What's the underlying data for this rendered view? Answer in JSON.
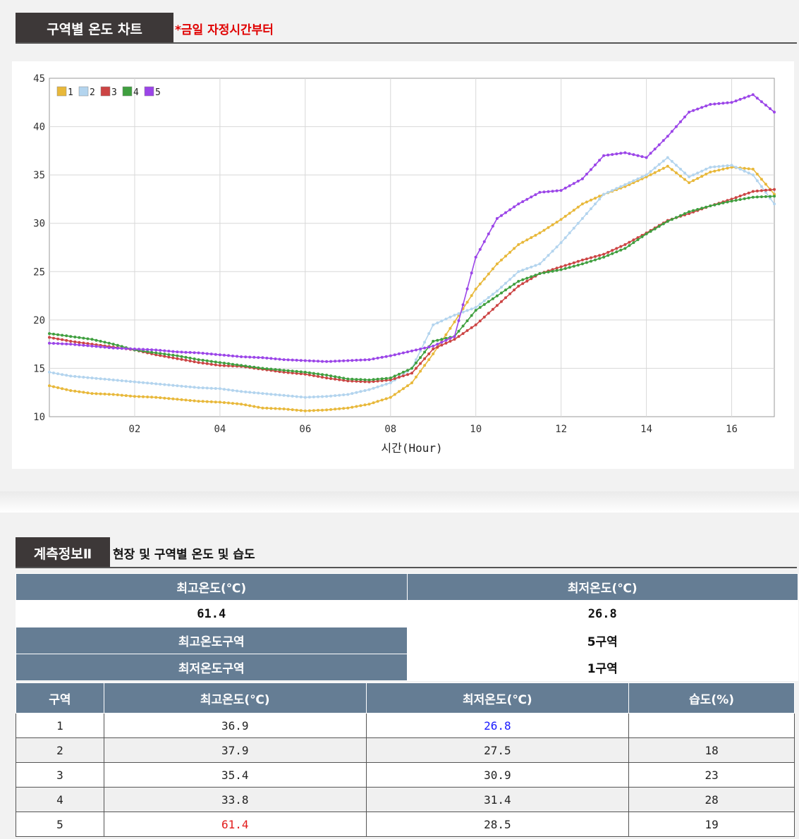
{
  "chart_section": {
    "title": "구역별 온도 차트",
    "note": "*금일 자정시간부터",
    "note_color": "#e00000"
  },
  "chart_data": {
    "type": "line",
    "title": "",
    "xlabel": "시간(Hour)",
    "ylabel": "",
    "xlim": [
      0,
      17
    ],
    "ylim": [
      10,
      45
    ],
    "x_ticks": [
      "02",
      "04",
      "06",
      "08",
      "10",
      "12",
      "14",
      "16"
    ],
    "y_ticks": [
      "10",
      "15",
      "20",
      "25",
      "30",
      "35",
      "40",
      "45"
    ],
    "grid": true,
    "legend_position": "top-left",
    "x": [
      0,
      0.5,
      1,
      1.5,
      2,
      2.5,
      3,
      3.5,
      4,
      4.5,
      5,
      5.5,
      6,
      6.5,
      7,
      7.5,
      8,
      8.5,
      9,
      9.5,
      10,
      10.5,
      11,
      11.5,
      12,
      12.5,
      13,
      13.5,
      14,
      14.5,
      15,
      15.5,
      16,
      16.5,
      17
    ],
    "series": [
      {
        "name": "1",
        "color": "#e8b83a",
        "values": [
          13.2,
          12.7,
          12.4,
          12.3,
          12.1,
          12.0,
          11.8,
          11.6,
          11.5,
          11.3,
          10.9,
          10.8,
          10.6,
          10.7,
          10.9,
          11.3,
          12.0,
          13.5,
          16.5,
          19.8,
          23.2,
          25.8,
          27.8,
          29.0,
          30.4,
          32.0,
          33.0,
          33.8,
          34.8,
          35.9,
          34.2,
          35.3,
          35.8,
          35.6,
          33.0
        ]
      },
      {
        "name": "2",
        "color": "#b3d4ee",
        "values": [
          14.6,
          14.2,
          14.0,
          13.8,
          13.6,
          13.4,
          13.2,
          13.0,
          12.9,
          12.6,
          12.4,
          12.2,
          12.0,
          12.1,
          12.3,
          12.8,
          13.5,
          15.0,
          19.5,
          20.5,
          21.3,
          23.0,
          25.0,
          25.8,
          28.0,
          30.5,
          33.0,
          34.0,
          35.0,
          36.8,
          34.8,
          35.8,
          36.0,
          35.0,
          32.0
        ]
      },
      {
        "name": "3",
        "color": "#cc4444",
        "values": [
          18.2,
          17.8,
          17.5,
          17.2,
          16.9,
          16.4,
          16.0,
          15.6,
          15.3,
          15.2,
          14.9,
          14.6,
          14.4,
          14.0,
          13.7,
          13.6,
          13.8,
          14.5,
          17.0,
          18.0,
          19.5,
          21.5,
          23.5,
          24.8,
          25.5,
          26.2,
          26.8,
          27.8,
          29.0,
          30.3,
          31.0,
          31.8,
          32.5,
          33.3,
          33.5
        ]
      },
      {
        "name": "4",
        "color": "#3f9f3f",
        "values": [
          18.6,
          18.3,
          18.0,
          17.5,
          16.9,
          16.6,
          16.3,
          15.9,
          15.6,
          15.3,
          15.0,
          14.8,
          14.6,
          14.3,
          13.9,
          13.8,
          14.0,
          15.0,
          17.8,
          18.3,
          21.0,
          22.5,
          24.0,
          24.8,
          25.2,
          25.8,
          26.5,
          27.4,
          28.9,
          30.2,
          31.2,
          31.8,
          32.3,
          32.7,
          32.8
        ]
      },
      {
        "name": "5",
        "color": "#9b45e8",
        "values": [
          17.6,
          17.5,
          17.3,
          17.1,
          17.0,
          16.9,
          16.7,
          16.6,
          16.4,
          16.2,
          16.1,
          15.9,
          15.8,
          15.7,
          15.8,
          15.9,
          16.3,
          16.8,
          17.3,
          18.3,
          26.5,
          30.5,
          32.0,
          33.2,
          33.4,
          34.6,
          37.0,
          37.3,
          36.8,
          39.0,
          41.5,
          42.3,
          42.5,
          43.3,
          41.5
        ]
      }
    ]
  },
  "measure_section": {
    "title": "계측정보Ⅱ",
    "subtitle": "현장 및 구역별 온도 및 습도"
  },
  "summary": {
    "max_temp_label": "최고온도(℃)",
    "min_temp_label": "최저온도(℃)",
    "max_temp": "61.4",
    "min_temp": "26.8",
    "max_zone_label": "최고온도구역",
    "max_zone": "5구역",
    "min_zone_label": "최저온도구역",
    "min_zone": "1구역"
  },
  "zone_table": {
    "headers": [
      "구역",
      "최고온도(℃)",
      "최저온도(℃)",
      "습도(%)"
    ],
    "rows": [
      [
        "1",
        "36.9",
        "26.8",
        ""
      ],
      [
        "2",
        "37.9",
        "27.5",
        "18"
      ],
      [
        "3",
        "35.4",
        "30.9",
        "23"
      ],
      [
        "4",
        "33.8",
        "31.4",
        "28"
      ],
      [
        "5",
        "61.4",
        "28.5",
        "19"
      ]
    ],
    "highlight_colors": {
      "min": "#1a1aff",
      "max": "#e21b1b"
    }
  }
}
